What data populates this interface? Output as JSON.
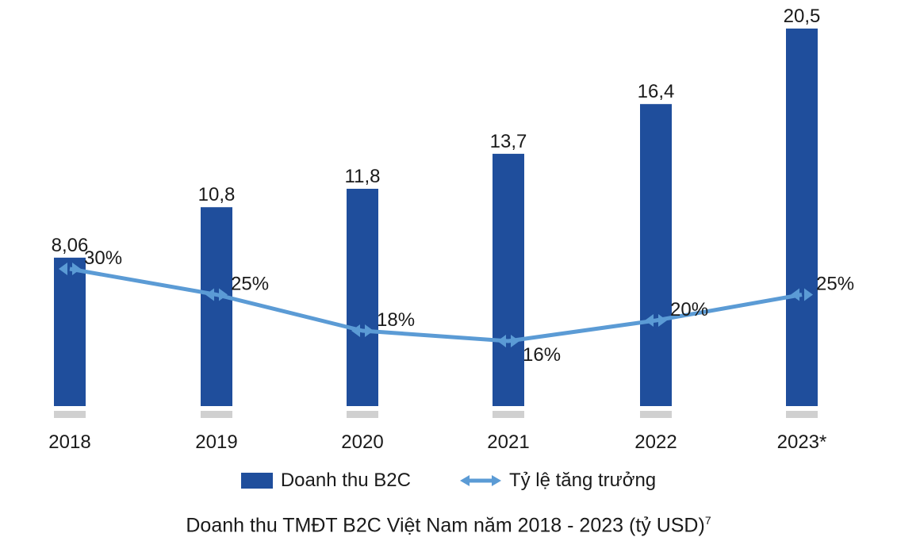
{
  "chart_data": {
    "type": "bar",
    "title": "",
    "categories": [
      "2018",
      "2019",
      "2020",
      "2021",
      "2022",
      "2023*"
    ],
    "series": [
      {
        "name": "Doanh thu B2C",
        "type": "bar",
        "values": [
          8.06,
          10.8,
          11.8,
          13.7,
          16.4,
          20.5
        ],
        "value_labels": [
          "8,06",
          "10,8",
          "11,8",
          "13,7",
          "16,4",
          "20,5"
        ],
        "color": "#1f4e9c"
      },
      {
        "name": "Tỷ lệ tăng trưởng",
        "type": "line",
        "values": [
          30,
          25,
          18,
          16,
          20,
          25
        ],
        "value_labels": [
          "30%",
          "25%",
          "18%",
          "16%",
          "20%",
          "25%"
        ],
        "color": "#5b9bd5"
      }
    ],
    "legend": "bottom"
  },
  "caption": {
    "text": "Doanh thu TMĐT B2C Việt Nam năm 2018 - 2023 (tỷ USD)",
    "superscript": "7"
  }
}
